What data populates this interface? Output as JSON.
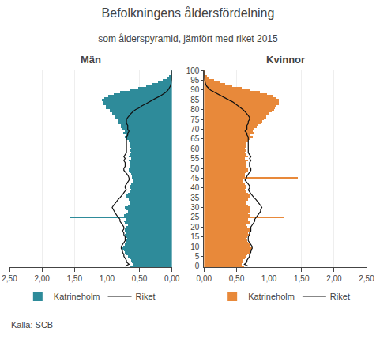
{
  "title": "Befolkningens åldersfördelning",
  "subtitle": "som ålderspyramid, jämfört med riket 2015",
  "annotations": [
    {
      "text": "Källa: SCB"
    }
  ],
  "chart_data": [
    {
      "type": "bar",
      "orientation": "horizontal",
      "title": "Män",
      "categories": [
        0,
        1,
        2,
        3,
        4,
        5,
        6,
        7,
        8,
        9,
        10,
        11,
        12,
        13,
        14,
        15,
        16,
        17,
        18,
        19,
        20,
        21,
        22,
        23,
        24,
        25,
        26,
        27,
        28,
        29,
        30,
        31,
        32,
        33,
        34,
        35,
        36,
        37,
        38,
        39,
        40,
        41,
        42,
        43,
        44,
        45,
        46,
        47,
        48,
        49,
        50,
        51,
        52,
        53,
        54,
        55,
        56,
        57,
        58,
        59,
        60,
        61,
        62,
        63,
        64,
        65,
        66,
        67,
        68,
        69,
        70,
        71,
        72,
        73,
        74,
        75,
        76,
        77,
        78,
        79,
        80,
        81,
        82,
        83,
        84,
        85,
        86,
        87,
        88,
        89,
        90,
        91,
        92,
        93,
        94,
        95,
        96,
        97,
        98,
        99,
        100
      ],
      "series": [
        {
          "name": "Katrineholm",
          "type": "bar",
          "color": "#2E8B9A",
          "values": [
            0.65,
            0.6,
            0.62,
            0.63,
            0.65,
            0.68,
            0.7,
            0.72,
            0.74,
            0.76,
            0.75,
            0.73,
            0.71,
            0.7,
            0.69,
            0.7,
            0.72,
            0.71,
            0.73,
            0.72,
            0.7,
            0.68,
            0.72,
            0.74,
            0.7,
            1.58,
            0.74,
            0.7,
            0.68,
            0.7,
            0.72,
            0.68,
            0.65,
            0.65,
            0.67,
            0.7,
            0.7,
            0.68,
            0.65,
            0.63,
            0.65,
            0.65,
            0.63,
            0.6,
            0.6,
            0.62,
            0.62,
            0.63,
            0.65,
            0.67,
            0.67,
            0.65,
            0.65,
            0.65,
            0.67,
            0.63,
            0.67,
            0.65,
            0.63,
            0.65,
            0.63,
            0.65,
            0.65,
            0.65,
            0.67,
            0.7,
            0.72,
            0.7,
            0.75,
            0.72,
            0.76,
            0.78,
            0.78,
            0.82,
            0.84,
            0.84,
            0.88,
            0.88,
            0.92,
            0.96,
            0.96,
            1.02,
            1.02,
            1.06,
            1.07,
            1.08,
            1.04,
            0.98,
            0.9,
            0.8,
            0.65,
            0.52,
            0.4,
            0.3,
            0.22,
            0.14,
            0.08,
            0.04,
            0.02,
            0.01,
            0.005
          ]
        },
        {
          "name": "Riket",
          "type": "line",
          "color": "#111111",
          "values": [
            0.72,
            0.66,
            0.7,
            0.7,
            0.72,
            0.74,
            0.74,
            0.76,
            0.76,
            0.78,
            0.78,
            0.76,
            0.74,
            0.72,
            0.72,
            0.72,
            0.74,
            0.74,
            0.76,
            0.74,
            0.74,
            0.76,
            0.78,
            0.8,
            0.8,
            0.83,
            0.85,
            0.87,
            0.89,
            0.9,
            0.92,
            0.9,
            0.88,
            0.85,
            0.83,
            0.8,
            0.77,
            0.75,
            0.73,
            0.7,
            0.72,
            0.72,
            0.7,
            0.68,
            0.66,
            0.66,
            0.67,
            0.69,
            0.72,
            0.74,
            0.74,
            0.72,
            0.72,
            0.72,
            0.74,
            0.72,
            0.74,
            0.72,
            0.7,
            0.7,
            0.7,
            0.7,
            0.7,
            0.7,
            0.7,
            0.7,
            0.7,
            0.68,
            0.68,
            0.66,
            0.68,
            0.68,
            0.68,
            0.7,
            0.7,
            0.7,
            0.68,
            0.66,
            0.63,
            0.6,
            0.56,
            0.5,
            0.46,
            0.4,
            0.35,
            0.29,
            0.24,
            0.18,
            0.13,
            0.09,
            0.06,
            0.04,
            0.025,
            0.015,
            0.008,
            0.004,
            0.002,
            0.001,
            0.0005,
            0.0002,
            0.0001
          ]
        }
      ],
      "xlim": [
        2.5,
        0
      ],
      "xticks": [
        {
          "value": 0.0,
          "label": "0,00"
        },
        {
          "value": 0.5,
          "label": "0,50"
        },
        {
          "value": 1.0,
          "label": "1,00"
        },
        {
          "value": 1.5,
          "label": "1,50"
        },
        {
          "value": 2.0,
          "label": "2,00"
        },
        {
          "value": 2.5,
          "label": "2,50"
        }
      ],
      "ylim": [
        -0.5,
        100.5
      ],
      "yticks": [
        0,
        5,
        10,
        15,
        20,
        25,
        30,
        35,
        40,
        45,
        50,
        55,
        60,
        65,
        70,
        75,
        80,
        85,
        90,
        95,
        100
      ],
      "tick_labels": "x",
      "grid": "x",
      "legend": "bottom"
    },
    {
      "type": "bar",
      "orientation": "horizontal",
      "title": "Kvinnor",
      "categories": [
        0,
        1,
        2,
        3,
        4,
        5,
        6,
        7,
        8,
        9,
        10,
        11,
        12,
        13,
        14,
        15,
        16,
        17,
        18,
        19,
        20,
        21,
        22,
        23,
        24,
        25,
        26,
        27,
        28,
        29,
        30,
        31,
        32,
        33,
        34,
        35,
        36,
        37,
        38,
        39,
        40,
        41,
        42,
        43,
        44,
        45,
        46,
        47,
        48,
        49,
        50,
        51,
        52,
        53,
        54,
        55,
        56,
        57,
        58,
        59,
        60,
        61,
        62,
        63,
        64,
        65,
        66,
        67,
        68,
        69,
        70,
        71,
        72,
        73,
        74,
        75,
        76,
        77,
        78,
        79,
        80,
        81,
        82,
        83,
        84,
        85,
        86,
        87,
        88,
        89,
        90,
        91,
        92,
        93,
        94,
        95,
        96,
        97,
        98,
        99,
        100
      ],
      "series": [
        {
          "name": "Katrineholm",
          "type": "bar",
          "color": "#E8893A",
          "values": [
            0.62,
            0.58,
            0.6,
            0.61,
            0.63,
            0.65,
            0.67,
            0.7,
            0.72,
            0.74,
            0.72,
            0.7,
            0.68,
            0.67,
            0.65,
            0.67,
            0.7,
            0.68,
            0.72,
            0.7,
            0.67,
            0.65,
            0.7,
            0.72,
            0.68,
            1.24,
            0.7,
            0.68,
            0.7,
            0.72,
            0.72,
            0.68,
            0.65,
            0.65,
            0.68,
            0.7,
            0.7,
            0.68,
            0.65,
            0.63,
            0.65,
            0.65,
            0.63,
            0.61,
            0.61,
            1.45,
            0.63,
            0.63,
            0.65,
            0.68,
            0.68,
            0.65,
            0.65,
            0.65,
            0.68,
            0.63,
            0.68,
            0.65,
            0.63,
            0.65,
            0.63,
            0.65,
            0.65,
            0.65,
            0.68,
            0.72,
            0.75,
            0.72,
            0.78,
            0.75,
            0.78,
            0.82,
            0.84,
            0.88,
            0.9,
            0.92,
            0.96,
            0.96,
            1.0,
            1.05,
            1.08,
            1.1,
            1.12,
            1.15,
            1.16,
            1.16,
            1.12,
            1.06,
            0.97,
            0.86,
            0.72,
            0.58,
            0.44,
            0.33,
            0.24,
            0.16,
            0.09,
            0.05,
            0.02,
            0.01,
            0.005
          ]
        },
        {
          "name": "Riket",
          "type": "line",
          "color": "#111111",
          "values": [
            0.68,
            0.62,
            0.66,
            0.66,
            0.68,
            0.7,
            0.7,
            0.72,
            0.72,
            0.74,
            0.74,
            0.72,
            0.7,
            0.68,
            0.68,
            0.68,
            0.7,
            0.7,
            0.72,
            0.72,
            0.72,
            0.74,
            0.76,
            0.78,
            0.78,
            0.8,
            0.83,
            0.85,
            0.87,
            0.87,
            0.89,
            0.87,
            0.85,
            0.83,
            0.8,
            0.77,
            0.74,
            0.72,
            0.7,
            0.68,
            0.7,
            0.7,
            0.68,
            0.66,
            0.63,
            0.65,
            0.66,
            0.68,
            0.7,
            0.72,
            0.72,
            0.7,
            0.7,
            0.7,
            0.72,
            0.7,
            0.72,
            0.7,
            0.68,
            0.68,
            0.68,
            0.68,
            0.68,
            0.68,
            0.68,
            0.68,
            0.68,
            0.66,
            0.66,
            0.63,
            0.66,
            0.66,
            0.66,
            0.68,
            0.68,
            0.7,
            0.7,
            0.68,
            0.66,
            0.63,
            0.6,
            0.56,
            0.52,
            0.48,
            0.44,
            0.38,
            0.32,
            0.26,
            0.2,
            0.14,
            0.1,
            0.07,
            0.04,
            0.025,
            0.015,
            0.009,
            0.005,
            0.002,
            0.001,
            0.0005,
            0.0002
          ]
        }
      ],
      "xlim": [
        0,
        2.5
      ],
      "xticks": [
        {
          "value": 0.0,
          "label": "0,00"
        },
        {
          "value": 0.5,
          "label": "0,50"
        },
        {
          "value": 1.0,
          "label": "1,00"
        },
        {
          "value": 1.5,
          "label": "1,50"
        },
        {
          "value": 2.0,
          "label": "2,00"
        },
        {
          "value": 2.5,
          "label": "2,50"
        }
      ],
      "ylim": [
        -0.5,
        100.5
      ],
      "yticks": [
        0,
        5,
        10,
        15,
        20,
        25,
        30,
        35,
        40,
        45,
        50,
        55,
        60,
        65,
        70,
        75,
        80,
        85,
        90,
        95,
        100
      ],
      "grid": "x",
      "legend": "bottom"
    }
  ]
}
